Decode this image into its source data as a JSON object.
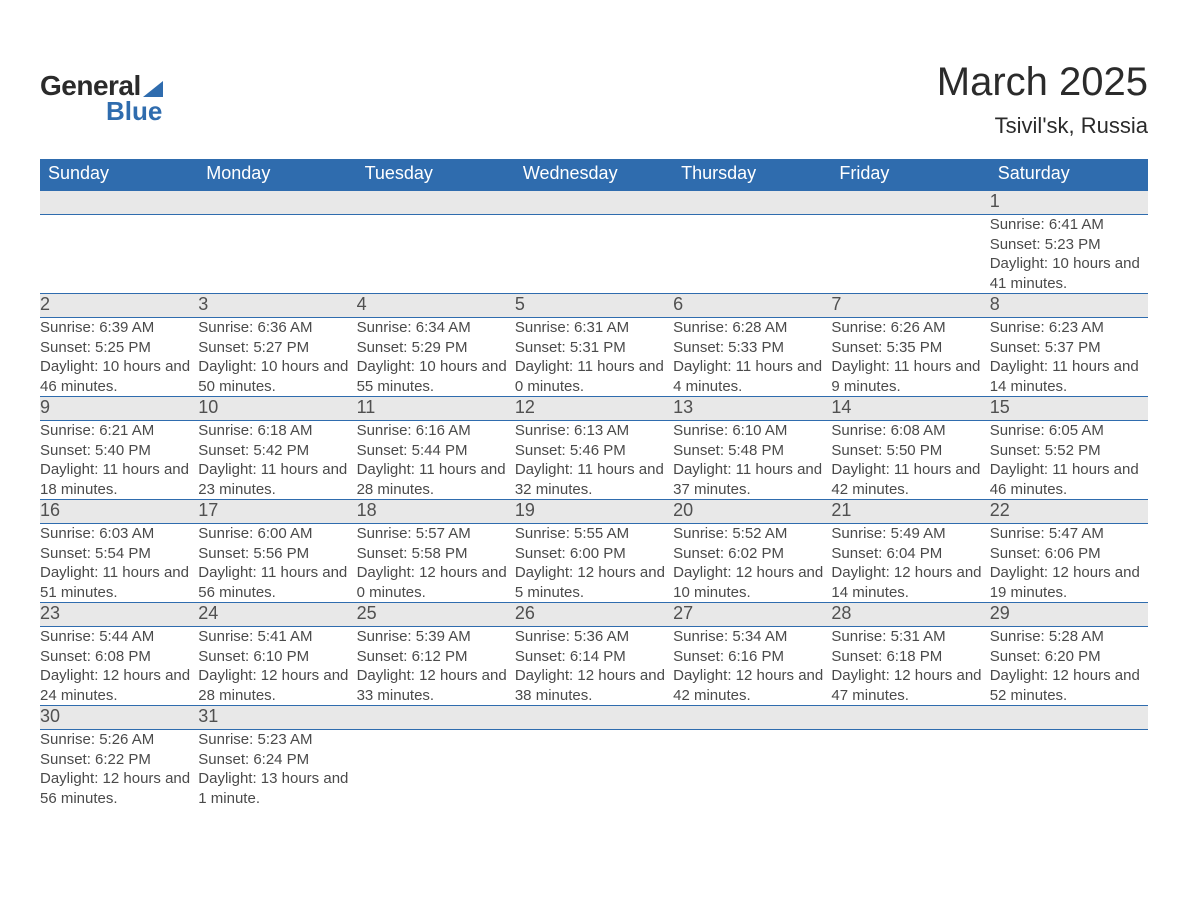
{
  "brand": {
    "name1": "General",
    "name2": "Blue",
    "accent_color": "#2f6cae"
  },
  "header": {
    "title": "March 2025",
    "location": "Tsivil'sk, Russia"
  },
  "calendar": {
    "type": "table",
    "background_color": "#ffffff",
    "header_bg": "#2f6cae",
    "header_text_color": "#ffffff",
    "daynum_bg": "#e8e8e8",
    "border_color": "#2f6cae",
    "body_text_color": "#4a4a4a",
    "title_fontsize": 40,
    "header_fontsize": 18,
    "daynum_fontsize": 18,
    "detail_fontsize": 15,
    "columns": [
      "Sunday",
      "Monday",
      "Tuesday",
      "Wednesday",
      "Thursday",
      "Friday",
      "Saturday"
    ],
    "weeks": [
      [
        null,
        null,
        null,
        null,
        null,
        null,
        {
          "d": "1",
          "sunrise": "6:41 AM",
          "sunset": "5:23 PM",
          "daylight": "10 hours and 41 minutes."
        }
      ],
      [
        {
          "d": "2",
          "sunrise": "6:39 AM",
          "sunset": "5:25 PM",
          "daylight": "10 hours and 46 minutes."
        },
        {
          "d": "3",
          "sunrise": "6:36 AM",
          "sunset": "5:27 PM",
          "daylight": "10 hours and 50 minutes."
        },
        {
          "d": "4",
          "sunrise": "6:34 AM",
          "sunset": "5:29 PM",
          "daylight": "10 hours and 55 minutes."
        },
        {
          "d": "5",
          "sunrise": "6:31 AM",
          "sunset": "5:31 PM",
          "daylight": "11 hours and 0 minutes."
        },
        {
          "d": "6",
          "sunrise": "6:28 AM",
          "sunset": "5:33 PM",
          "daylight": "11 hours and 4 minutes."
        },
        {
          "d": "7",
          "sunrise": "6:26 AM",
          "sunset": "5:35 PM",
          "daylight": "11 hours and 9 minutes."
        },
        {
          "d": "8",
          "sunrise": "6:23 AM",
          "sunset": "5:37 PM",
          "daylight": "11 hours and 14 minutes."
        }
      ],
      [
        {
          "d": "9",
          "sunrise": "6:21 AM",
          "sunset": "5:40 PM",
          "daylight": "11 hours and 18 minutes."
        },
        {
          "d": "10",
          "sunrise": "6:18 AM",
          "sunset": "5:42 PM",
          "daylight": "11 hours and 23 minutes."
        },
        {
          "d": "11",
          "sunrise": "6:16 AM",
          "sunset": "5:44 PM",
          "daylight": "11 hours and 28 minutes."
        },
        {
          "d": "12",
          "sunrise": "6:13 AM",
          "sunset": "5:46 PM",
          "daylight": "11 hours and 32 minutes."
        },
        {
          "d": "13",
          "sunrise": "6:10 AM",
          "sunset": "5:48 PM",
          "daylight": "11 hours and 37 minutes."
        },
        {
          "d": "14",
          "sunrise": "6:08 AM",
          "sunset": "5:50 PM",
          "daylight": "11 hours and 42 minutes."
        },
        {
          "d": "15",
          "sunrise": "6:05 AM",
          "sunset": "5:52 PM",
          "daylight": "11 hours and 46 minutes."
        }
      ],
      [
        {
          "d": "16",
          "sunrise": "6:03 AM",
          "sunset": "5:54 PM",
          "daylight": "11 hours and 51 minutes."
        },
        {
          "d": "17",
          "sunrise": "6:00 AM",
          "sunset": "5:56 PM",
          "daylight": "11 hours and 56 minutes."
        },
        {
          "d": "18",
          "sunrise": "5:57 AM",
          "sunset": "5:58 PM",
          "daylight": "12 hours and 0 minutes."
        },
        {
          "d": "19",
          "sunrise": "5:55 AM",
          "sunset": "6:00 PM",
          "daylight": "12 hours and 5 minutes."
        },
        {
          "d": "20",
          "sunrise": "5:52 AM",
          "sunset": "6:02 PM",
          "daylight": "12 hours and 10 minutes."
        },
        {
          "d": "21",
          "sunrise": "5:49 AM",
          "sunset": "6:04 PM",
          "daylight": "12 hours and 14 minutes."
        },
        {
          "d": "22",
          "sunrise": "5:47 AM",
          "sunset": "6:06 PM",
          "daylight": "12 hours and 19 minutes."
        }
      ],
      [
        {
          "d": "23",
          "sunrise": "5:44 AM",
          "sunset": "6:08 PM",
          "daylight": "12 hours and 24 minutes."
        },
        {
          "d": "24",
          "sunrise": "5:41 AM",
          "sunset": "6:10 PM",
          "daylight": "12 hours and 28 minutes."
        },
        {
          "d": "25",
          "sunrise": "5:39 AM",
          "sunset": "6:12 PM",
          "daylight": "12 hours and 33 minutes."
        },
        {
          "d": "26",
          "sunrise": "5:36 AM",
          "sunset": "6:14 PM",
          "daylight": "12 hours and 38 minutes."
        },
        {
          "d": "27",
          "sunrise": "5:34 AM",
          "sunset": "6:16 PM",
          "daylight": "12 hours and 42 minutes."
        },
        {
          "d": "28",
          "sunrise": "5:31 AM",
          "sunset": "6:18 PM",
          "daylight": "12 hours and 47 minutes."
        },
        {
          "d": "29",
          "sunrise": "5:28 AM",
          "sunset": "6:20 PM",
          "daylight": "12 hours and 52 minutes."
        }
      ],
      [
        {
          "d": "30",
          "sunrise": "5:26 AM",
          "sunset": "6:22 PM",
          "daylight": "12 hours and 56 minutes."
        },
        {
          "d": "31",
          "sunrise": "5:23 AM",
          "sunset": "6:24 PM",
          "daylight": "13 hours and 1 minute."
        },
        null,
        null,
        null,
        null,
        null
      ]
    ],
    "labels": {
      "sunrise": "Sunrise:",
      "sunset": "Sunset:",
      "daylight": "Daylight:"
    }
  }
}
